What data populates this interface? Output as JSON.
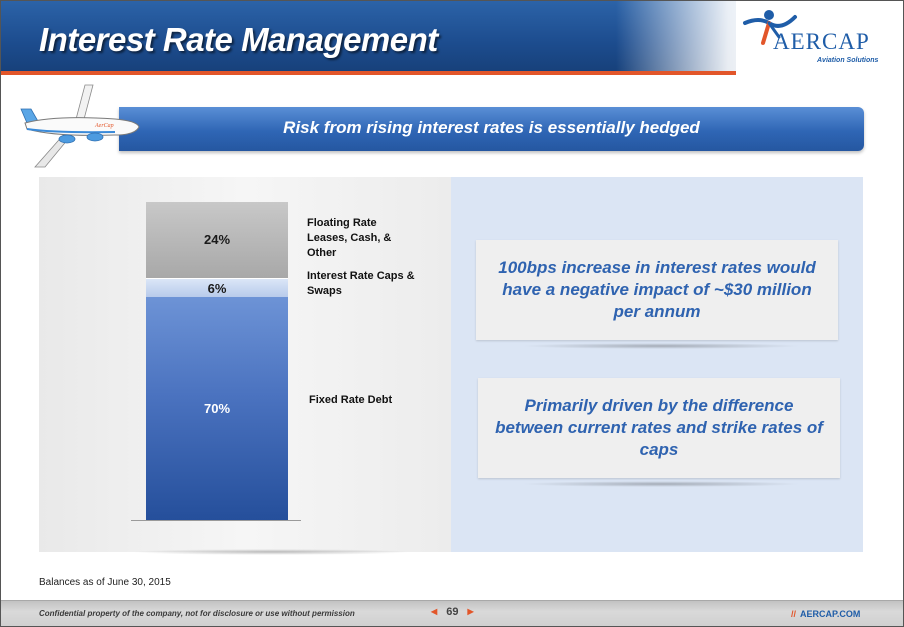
{
  "header": {
    "title": "Interest Rate Management"
  },
  "logo": {
    "name": "AERCAP",
    "tagline": "Aviation Solutions",
    "brand_color": "#1f5da8",
    "accent_color": "#e2562a"
  },
  "banner": {
    "text": "Risk from rising interest rates is essentially hedged"
  },
  "chart_data": {
    "type": "bar",
    "stacked": true,
    "categories": [
      ""
    ],
    "series": [
      {
        "name": "Fixed Rate Debt",
        "values": [
          70
        ],
        "label": "70%",
        "color": "#3a63b0"
      },
      {
        "name": "Interest Rate Caps & Swaps",
        "values": [
          6
        ],
        "label": "6%",
        "color": "#c9d8f1"
      },
      {
        "name": "Floating Rate Leases, Cash, & Other",
        "values": [
          24
        ],
        "label": "24%",
        "color": "#b8b8b8"
      }
    ],
    "ylim": [
      0,
      100
    ],
    "unit": "%"
  },
  "callouts": [
    {
      "text": "100bps increase in interest rates would have a negative impact of ~$30 million per annum"
    },
    {
      "text": "Primarily driven by the difference between current rates and strike rates of caps"
    }
  ],
  "footnote": "Balances as of June 30, 2015",
  "footer": {
    "confidential": "Confidential property of the company, not for disclosure or use without permission",
    "page_number": "69",
    "prev_icon": "left-triangle-icon",
    "next_icon": "right-triangle-icon",
    "site": "AERCAP.COM",
    "site_prefix": "//"
  }
}
